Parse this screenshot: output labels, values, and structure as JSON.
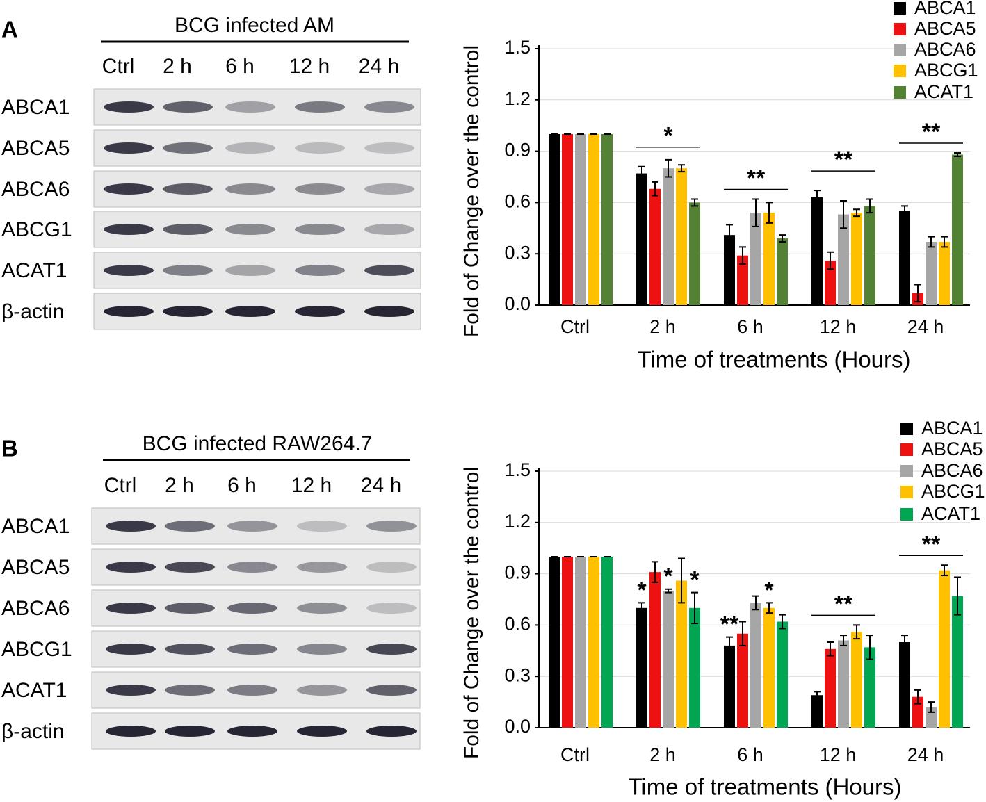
{
  "panels": [
    {
      "label": "A",
      "blot_title": "BCG infected AM",
      "lanes": [
        "Ctrl",
        "2 h",
        "6 h",
        "12 h",
        "24 h"
      ],
      "rows": [
        "ABCA1",
        "ABCA5",
        "ABCA6",
        "ABCG1",
        "ACAT1",
        "β-actin"
      ]
    },
    {
      "label": "B",
      "blot_title": "BCG infected RAW264.7",
      "lanes": [
        "Ctrl",
        "2 h",
        "6 h",
        "12 h",
        "24 h"
      ],
      "rows": [
        "ABCA1",
        "ABCA5",
        "ABCA6",
        "ABCG1",
        "ACAT1",
        "β-actin"
      ]
    }
  ],
  "chart_data": [
    {
      "type": "bar",
      "x_label": "Time of treatments (Hours)",
      "y_label": "Fold of Change over the control",
      "categories": [
        "Ctrl",
        "2 h",
        "6 h",
        "12 h",
        "24 h"
      ],
      "ylim": [
        0,
        1.5
      ],
      "yticks": [
        {
          "value": 0,
          "label": "0.0"
        },
        0.3,
        0.6,
        0.9,
        1.2,
        1.5
      ],
      "grid": true,
      "significance": [
        null,
        "*",
        "**",
        "**",
        "**"
      ],
      "series": [
        {
          "name": "ABCA1",
          "color": "#000000",
          "values": [
            1.0,
            0.77,
            0.41,
            0.63,
            0.55
          ],
          "errors": [
            0,
            0.04,
            0.06,
            0.04,
            0.03
          ]
        },
        {
          "name": "ABCA5",
          "color": "#ee1111",
          "values": [
            1.0,
            0.68,
            0.29,
            0.26,
            0.07
          ],
          "errors": [
            0,
            0.04,
            0.05,
            0.05,
            0.05
          ]
        },
        {
          "name": "ABCA6",
          "color": "#a6a6a6",
          "values": [
            1.0,
            0.8,
            0.54,
            0.53,
            0.37
          ],
          "errors": [
            0,
            0.05,
            0.08,
            0.08,
            0.03
          ]
        },
        {
          "name": "ABCG1",
          "color": "#ffc000",
          "values": [
            1.0,
            0.8,
            0.54,
            0.54,
            0.37
          ],
          "errors": [
            0,
            0.02,
            0.06,
            0.02,
            0.03
          ]
        },
        {
          "name": "ACAT1",
          "color": "#548235",
          "values": [
            1.0,
            0.6,
            0.39,
            0.58,
            0.88
          ],
          "errors": [
            0,
            0.02,
            0.02,
            0.04,
            0.01
          ]
        }
      ]
    },
    {
      "type": "bar",
      "x_label": "Time of treatments (Hours)",
      "y_label": "Fold of Change over the control",
      "categories": [
        "Ctrl",
        "2 h",
        "6 h",
        "12 h",
        "24 h"
      ],
      "ylim": [
        0,
        1.5
      ],
      "yticks": [
        {
          "value": 0,
          "label": "0.0"
        },
        0.3,
        0.6,
        0.9,
        1.2,
        1.5
      ],
      "grid": true,
      "significance": [
        null,
        null,
        null,
        "**",
        "**"
      ],
      "series": [
        {
          "name": "ABCA1",
          "color": "#000000",
          "values": [
            1.0,
            0.7,
            0.48,
            0.19,
            0.5
          ],
          "errors": [
            0,
            0.03,
            0.05,
            0.02,
            0.04
          ],
          "significance": [
            null,
            "*",
            "**",
            null,
            null
          ]
        },
        {
          "name": "ABCA5",
          "color": "#ee1111",
          "values": [
            1.0,
            0.91,
            0.55,
            0.46,
            0.18
          ],
          "errors": [
            0,
            0.06,
            0.07,
            0.04,
            0.04
          ]
        },
        {
          "name": "ABCA6",
          "color": "#a6a6a6",
          "values": [
            1.0,
            0.8,
            0.73,
            0.51,
            0.12
          ],
          "errors": [
            0,
            0.01,
            0.04,
            0.03,
            0.03
          ],
          "significance": [
            null,
            "*",
            null,
            null,
            null
          ]
        },
        {
          "name": "ABCG1",
          "color": "#ffc000",
          "values": [
            1.0,
            0.86,
            0.7,
            0.56,
            0.92
          ],
          "errors": [
            0,
            0.13,
            0.03,
            0.04,
            0.03
          ],
          "significance": [
            null,
            null,
            "*",
            null,
            null
          ]
        },
        {
          "name": "ACAT1",
          "color": "#00a651",
          "values": [
            1.0,
            0.7,
            0.62,
            0.47,
            0.77
          ],
          "errors": [
            0,
            0.09,
            0.04,
            0.07,
            0.11
          ],
          "significance": [
            null,
            "*",
            null,
            null,
            null
          ]
        }
      ]
    }
  ]
}
